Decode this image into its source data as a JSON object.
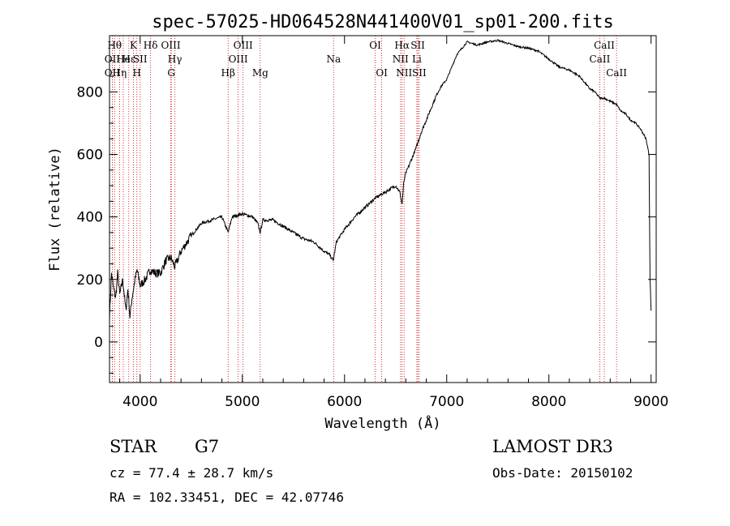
{
  "chart_data": {
    "type": "line",
    "title": "spec-57025-HD064528N441400V01_sp01-200.fits",
    "xlabel": "Wavelength (Å)",
    "ylabel": "Flux (relative)",
    "xlim": [
      3700,
      9050
    ],
    "ylim": [
      -130,
      980
    ],
    "xticks": [
      4000,
      5000,
      6000,
      7000,
      8000,
      9000
    ],
    "yticks": [
      0,
      200,
      400,
      600,
      800
    ],
    "grid": false,
    "series": [
      {
        "name": "spectrum",
        "x": [
          3700,
          3720,
          3740,
          3760,
          3780,
          3800,
          3830,
          3860,
          3880,
          3900,
          3920,
          3950,
          3970,
          4000,
          4050,
          4100,
          4150,
          4200,
          4250,
          4300,
          4340,
          4400,
          4500,
          4600,
          4700,
          4800,
          4861,
          4900,
          5000,
          5100,
          5150,
          5175,
          5200,
          5300,
          5400,
          5500,
          5600,
          5700,
          5800,
          5850,
          5890,
          5920,
          6000,
          6100,
          6200,
          6300,
          6400,
          6500,
          6540,
          6563,
          6580,
          6600,
          6650,
          6700,
          6750,
          6800,
          6850,
          6900,
          6950,
          7000,
          7050,
          7100,
          7200,
          7300,
          7400,
          7500,
          7600,
          7700,
          7800,
          7900,
          8000,
          8100,
          8200,
          8300,
          8400,
          8450,
          8500,
          8542,
          8600,
          8662,
          8700,
          8750,
          8800,
          8850,
          8900,
          8950,
          8980,
          8990,
          9000
        ],
        "y": [
          80,
          220,
          170,
          140,
          220,
          150,
          200,
          100,
          170,
          80,
          140,
          200,
          230,
          180,
          200,
          230,
          220,
          220,
          260,
          270,
          240,
          290,
          340,
          380,
          390,
          400,
          350,
          400,
          410,
          400,
          380,
          350,
          390,
          390,
          370,
          350,
          330,
          320,
          290,
          280,
          260,
          320,
          360,
          400,
          430,
          460,
          480,
          500,
          480,
          440,
          510,
          540,
          580,
          620,
          670,
          710,
          750,
          790,
          820,
          840,
          880,
          920,
          960,
          950,
          960,
          965,
          955,
          945,
          940,
          930,
          905,
          880,
          870,
          850,
          810,
          800,
          780,
          780,
          770,
          760,
          740,
          730,
          710,
          700,
          680,
          650,
          600,
          200,
          100
        ]
      }
    ],
    "line_markers": [
      {
        "wavelength": 3727,
        "label": "OII",
        "row": 2
      },
      {
        "wavelength": 3727,
        "label": "OII",
        "row": 3
      },
      {
        "wavelength": 3750,
        "label": "Hθ",
        "row": 1
      },
      {
        "wavelength": 3798,
        "label": "Hη",
        "row": 3
      },
      {
        "wavelength": 3835,
        "label": "He",
        "row": 2
      },
      {
        "wavelength": 3889,
        "label": "Hε",
        "row": 2
      },
      {
        "wavelength": 3934,
        "label": "K",
        "row": 1
      },
      {
        "wavelength": 3968,
        "label": "H",
        "row": 3
      },
      {
        "wavelength": 4000,
        "label": "SII",
        "row": 2
      },
      {
        "wavelength": 4102,
        "label": "Hδ",
        "row": 1
      },
      {
        "wavelength": 4300,
        "label": "OIII",
        "row": 1
      },
      {
        "wavelength": 4305,
        "label": "G",
        "row": 3
      },
      {
        "wavelength": 4340,
        "label": "Hγ",
        "row": 2
      },
      {
        "wavelength": 4861,
        "label": "Hβ",
        "row": 3
      },
      {
        "wavelength": 4959,
        "label": "OIII",
        "row": 2
      },
      {
        "wavelength": 5007,
        "label": "OIII",
        "row": 1
      },
      {
        "wavelength": 5175,
        "label": "Mg",
        "row": 3
      },
      {
        "wavelength": 5893,
        "label": "Na",
        "row": 2
      },
      {
        "wavelength": 6300,
        "label": "OI",
        "row": 1
      },
      {
        "wavelength": 6364,
        "label": "OI",
        "row": 3
      },
      {
        "wavelength": 6548,
        "label": "NII",
        "row": 2
      },
      {
        "wavelength": 6563,
        "label": "Hα",
        "row": 1
      },
      {
        "wavelength": 6583,
        "label": "NII",
        "row": 3
      },
      {
        "wavelength": 6708,
        "label": "Li",
        "row": 2
      },
      {
        "wavelength": 6717,
        "label": "SII",
        "row": 1
      },
      {
        "wavelength": 6731,
        "label": "SII",
        "row": 3
      },
      {
        "wavelength": 8498,
        "label": "CaII",
        "row": 2
      },
      {
        "wavelength": 8542,
        "label": "CaII",
        "row": 1
      },
      {
        "wavelength": 8662,
        "label": "CaII",
        "row": 3
      }
    ],
    "marker_color": "#cc0000"
  },
  "info": {
    "object_class": "STAR",
    "subclass": "G7",
    "survey": "LAMOST DR3",
    "velocity": "cz = 77.4 ± 28.7 km/s",
    "obs_date": "Obs-Date: 20150102",
    "coords": "RA = 102.33451, DEC =  42.07746"
  }
}
